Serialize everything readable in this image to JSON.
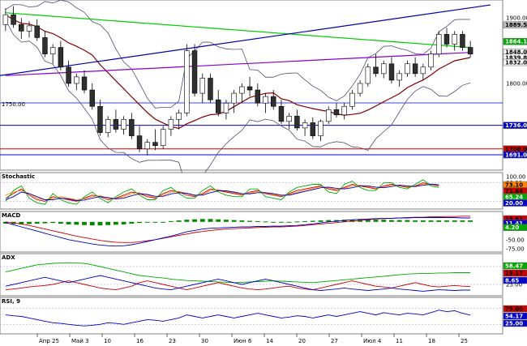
{
  "chart_data": {
    "type": "candlestick",
    "x_ticks": [
      "Апр 25",
      "Май 3",
      "10",
      "16",
      "23",
      "30",
      "Июн 6",
      "14",
      "20",
      "27",
      "Июл 4",
      "11",
      "18",
      "25"
    ],
    "price": {
      "ylim": [
        1670,
        1925
      ],
      "y_ticks": [
        1900.0,
        1800.0
      ],
      "left_level_label": "1750.00",
      "candles": [
        [
          1890,
          1915,
          1880,
          1905
        ],
        [
          1905,
          1918,
          1885,
          1890
        ],
        [
          1890,
          1900,
          1868,
          1880
        ],
        [
          1880,
          1895,
          1870,
          1888
        ],
        [
          1888,
          1898,
          1865,
          1870
        ],
        [
          1870,
          1880,
          1840,
          1845
        ],
        [
          1845,
          1860,
          1830,
          1855
        ],
        [
          1855,
          1865,
          1820,
          1825
        ],
        [
          1825,
          1835,
          1795,
          1800
        ],
        [
          1800,
          1815,
          1790,
          1810
        ],
        [
          1810,
          1820,
          1785,
          1790
        ],
        [
          1790,
          1800,
          1760,
          1765
        ],
        [
          1765,
          1775,
          1720,
          1725
        ],
        [
          1725,
          1750,
          1718,
          1745
        ],
        [
          1745,
          1760,
          1725,
          1730
        ],
        [
          1730,
          1750,
          1722,
          1745
        ],
        [
          1745,
          1755,
          1715,
          1720
        ],
        [
          1720,
          1735,
          1695,
          1700
        ],
        [
          1700,
          1715,
          1690,
          1710
        ],
        [
          1710,
          1730,
          1698,
          1705
        ],
        [
          1705,
          1735,
          1700,
          1730
        ],
        [
          1730,
          1750,
          1720,
          1745
        ],
        [
          1745,
          1760,
          1730,
          1755
        ],
        [
          1755,
          1860,
          1750,
          1850
        ],
        [
          1850,
          1860,
          1780,
          1785
        ],
        [
          1785,
          1815,
          1770,
          1808
        ],
        [
          1808,
          1815,
          1770,
          1775
        ],
        [
          1775,
          1790,
          1750,
          1755
        ],
        [
          1755,
          1775,
          1745,
          1770
        ],
        [
          1770,
          1790,
          1755,
          1785
        ],
        [
          1785,
          1800,
          1770,
          1795
        ],
        [
          1795,
          1810,
          1780,
          1790
        ],
        [
          1790,
          1800,
          1765,
          1770
        ],
        [
          1770,
          1785,
          1755,
          1780
        ],
        [
          1780,
          1790,
          1760,
          1765
        ],
        [
          1765,
          1775,
          1738,
          1742
        ],
        [
          1742,
          1755,
          1730,
          1750
        ],
        [
          1750,
          1760,
          1728,
          1732
        ],
        [
          1732,
          1745,
          1720,
          1740
        ],
        [
          1740,
          1748,
          1715,
          1720
        ],
        [
          1720,
          1745,
          1712,
          1742
        ],
        [
          1742,
          1765,
          1738,
          1760
        ],
        [
          1760,
          1770,
          1748,
          1752
        ],
        [
          1752,
          1770,
          1745,
          1765
        ],
        [
          1765,
          1790,
          1760,
          1785
        ],
        [
          1785,
          1805,
          1780,
          1800
        ],
        [
          1800,
          1830,
          1795,
          1825
        ],
        [
          1825,
          1845,
          1810,
          1815
        ],
        [
          1815,
          1835,
          1808,
          1830
        ],
        [
          1830,
          1840,
          1800,
          1805
        ],
        [
          1805,
          1820,
          1795,
          1815
        ],
        [
          1815,
          1835,
          1810,
          1830
        ],
        [
          1830,
          1840,
          1810,
          1815
        ],
        [
          1815,
          1830,
          1805,
          1825
        ],
        [
          1825,
          1850,
          1820,
          1845
        ],
        [
          1845,
          1880,
          1840,
          1875
        ],
        [
          1875,
          1885,
          1855,
          1860
        ],
        [
          1860,
          1880,
          1850,
          1875
        ],
        [
          1875,
          1880,
          1850,
          1855
        ],
        [
          1855,
          1865,
          1840,
          1845
        ]
      ],
      "levels": [
        {
          "label": "1736.00",
          "value": 1736,
          "color": "#0000cc"
        },
        {
          "label": "1700.00",
          "value": 1700,
          "color": "#cc0000"
        },
        {
          "label": "1691.00",
          "value": 1691,
          "color": "#0000cc"
        }
      ],
      "right_tags": [
        {
          "label": "1889.58",
          "value": 1889.58,
          "color": "#c0c0c0"
        },
        {
          "label": "1864.10",
          "value": 1864.1,
          "color": "#00aa00"
        },
        {
          "label": "1848.00",
          "value": 1848.0,
          "color": "#ffffff"
        },
        {
          "label": "1839.86",
          "value": 1839.86,
          "color": "#ffffff"
        },
        {
          "label": "1832.09",
          "value": 1832.09,
          "color": "#ffffff"
        }
      ]
    },
    "stochastic": {
      "title": "Stochastic",
      "ylim": [
        0,
        100
      ],
      "y_ticks": [
        100.0,
        80.0,
        20.0
      ],
      "right_tags": [
        {
          "label": "73.10",
          "color": "#ff8800"
        },
        {
          "label": "71.64",
          "color": "#cc0000"
        },
        {
          "label": "65.24",
          "color": "#00aa00"
        },
        {
          "label": "20.00",
          "color": "#0000cc"
        }
      ],
      "series": [
        {
          "color": "#cc0000",
          "values": [
            30,
            45,
            60,
            40,
            25,
            20,
            35,
            30,
            25,
            20,
            30,
            40,
            35,
            25,
            30,
            40,
            50,
            45,
            35,
            30,
            45,
            55,
            50,
            40,
            35,
            45,
            60,
            55,
            50,
            45,
            40,
            50,
            55,
            45,
            40,
            35,
            45,
            55,
            60,
            65,
            70,
            60,
            55,
            65,
            75,
            70,
            65,
            60,
            70,
            75,
            70,
            65,
            70,
            80,
            75,
            70
          ]
        },
        {
          "color": "#ff8800",
          "values": [
            40,
            50,
            55,
            45,
            30,
            25,
            30,
            35,
            30,
            25,
            28,
            35,
            38,
            30,
            28,
            35,
            45,
            48,
            40,
            32,
            40,
            50,
            52,
            45,
            38,
            42,
            55,
            58,
            52,
            48,
            42,
            46,
            52,
            48,
            42,
            38,
            42,
            50,
            56,
            62,
            68,
            64,
            58,
            62,
            70,
            72,
            68,
            62,
            66,
            72,
            72,
            68,
            68,
            76,
            76,
            73
          ]
        },
        {
          "color": "#00aa00",
          "values": [
            20,
            55,
            70,
            30,
            15,
            10,
            45,
            25,
            15,
            10,
            35,
            50,
            30,
            15,
            35,
            50,
            60,
            40,
            25,
            25,
            55,
            65,
            45,
            30,
            30,
            55,
            70,
            50,
            40,
            35,
            35,
            60,
            60,
            35,
            30,
            25,
            50,
            65,
            70,
            75,
            75,
            50,
            45,
            75,
            85,
            65,
            55,
            55,
            80,
            80,
            65,
            60,
            75,
            90,
            70,
            65
          ]
        },
        {
          "color": "#0000cc",
          "values": [
            25,
            35,
            50,
            45,
            35,
            25,
            25,
            30,
            28,
            22,
            24,
            30,
            35,
            32,
            28,
            30,
            38,
            44,
            42,
            36,
            36,
            44,
            48,
            46,
            40,
            40,
            48,
            54,
            54,
            50,
            45,
            44,
            48,
            48,
            45,
            40,
            40,
            46,
            52,
            58,
            64,
            66,
            62,
            60,
            64,
            70,
            70,
            66,
            64,
            68,
            72,
            70,
            68,
            72,
            75,
            74
          ]
        }
      ]
    },
    "macd": {
      "title": "MACD",
      "ylim": [
        -80,
        20
      ],
      "y_ticks": [
        "-50.00",
        "-75.00"
      ],
      "right_tags": [
        {
          "label": "15.61",
          "color": "#cc0000"
        },
        {
          "label": "11.41",
          "color": "#0000cc"
        },
        {
          "label": "4.20",
          "color": "#00aa00"
        }
      ],
      "histogram": [
        -5,
        -6,
        -7,
        -6,
        -5,
        -4,
        -3,
        -5,
        -7,
        -8,
        -9,
        -10,
        -10,
        -9,
        -8,
        -7,
        -5,
        -3,
        -2,
        -1,
        0,
        2,
        4,
        6,
        7,
        8,
        8,
        7,
        6,
        5,
        4,
        3,
        2,
        1,
        0,
        -1,
        0,
        1,
        2,
        3,
        4,
        5,
        5,
        6,
        6,
        7,
        7,
        6,
        6,
        5,
        5,
        5,
        4,
        4,
        4,
        4,
        4,
        4,
        4,
        4
      ],
      "lines": [
        {
          "color": "#cc0000",
          "values": [
            0,
            -3,
            -6,
            -10,
            -15,
            -20,
            -25,
            -30,
            -35,
            -40,
            -44,
            -48,
            -52,
            -55,
            -57,
            -58,
            -58,
            -56,
            -53,
            -50,
            -46,
            -42,
            -38,
            -34,
            -30,
            -27,
            -24,
            -22,
            -20,
            -19,
            -18,
            -17,
            -16,
            -15,
            -14,
            -14,
            -13,
            -12,
            -10,
            -8,
            -6,
            -4,
            -2,
            0,
            2,
            4,
            6,
            8,
            9,
            10,
            11,
            12,
            13,
            13,
            14,
            14,
            15,
            15,
            16,
            16
          ]
        },
        {
          "color": "#0000cc",
          "values": [
            -2,
            -8,
            -14,
            -20,
            -26,
            -32,
            -38,
            -44,
            -50,
            -54,
            -58,
            -62,
            -65,
            -67,
            -68,
            -67,
            -64,
            -60,
            -55,
            -50,
            -45,
            -40,
            -34,
            -28,
            -24,
            -20,
            -18,
            -17,
            -16,
            -15,
            -14,
            -14,
            -13,
            -13,
            -12,
            -12,
            -11,
            -10,
            -8,
            -6,
            -3,
            0,
            2,
            4,
            6,
            7,
            8,
            9,
            10,
            10,
            11,
            11,
            12,
            12,
            12,
            12,
            12,
            12,
            11,
            11
          ]
        }
      ]
    },
    "adx": {
      "title": "ADX",
      "ylim": [
        0,
        100
      ],
      "y_ticks": [
        75.0,
        25.0
      ],
      "right_tags": [
        {
          "label": "58.47",
          "color": "#00aa00"
        },
        {
          "label": "19.17",
          "color": "#cc0000"
        },
        {
          "label": "8.65",
          "color": "#0000cc"
        }
      ],
      "series": [
        {
          "color": "#00aa00",
          "values": [
            60,
            65,
            70,
            75,
            80,
            82,
            84,
            85,
            86,
            85,
            84,
            80,
            75,
            70,
            65,
            60,
            55,
            50,
            48,
            45,
            43,
            40,
            38,
            36,
            35,
            34,
            33,
            32,
            31,
            30,
            31,
            32,
            33,
            34,
            35,
            34,
            33,
            32,
            31,
            30,
            32,
            34,
            36,
            38,
            40,
            42,
            44,
            46,
            48,
            50,
            52,
            54,
            55,
            56,
            56,
            57,
            57,
            58,
            58,
            58
          ]
        },
        {
          "color": "#cc0000",
          "values": [
            10,
            12,
            15,
            18,
            20,
            22,
            25,
            30,
            35,
            30,
            25,
            20,
            15,
            12,
            10,
            15,
            20,
            30,
            35,
            30,
            25,
            20,
            15,
            10,
            15,
            20,
            25,
            30,
            25,
            20,
            15,
            12,
            10,
            12,
            15,
            18,
            20,
            15,
            12,
            10,
            15,
            20,
            25,
            30,
            35,
            30,
            25,
            20,
            18,
            15,
            20,
            25,
            30,
            25,
            20,
            18,
            20,
            22,
            20,
            19
          ]
        },
        {
          "color": "#0000cc",
          "values": [
            20,
            25,
            30,
            35,
            40,
            45,
            40,
            35,
            30,
            35,
            40,
            45,
            50,
            45,
            40,
            35,
            30,
            25,
            20,
            15,
            12,
            10,
            15,
            20,
            25,
            30,
            35,
            40,
            35,
            30,
            25,
            30,
            35,
            40,
            35,
            30,
            25,
            20,
            15,
            10,
            8,
            10,
            12,
            15,
            12,
            10,
            8,
            10,
            12,
            15,
            12,
            10,
            8,
            6,
            8,
            10,
            9,
            8,
            9,
            9
          ]
        }
      ]
    },
    "rsi": {
      "title": "RSI, 9",
      "ylim": [
        0,
        100
      ],
      "y_ticks": [
        75.0,
        25.0
      ],
      "right_tags": [
        {
          "label": "75.00",
          "color": "#cc0000"
        },
        {
          "label": "54.17",
          "color": "#0000cc"
        },
        {
          "label": "25.00",
          "color": "#0000cc"
        }
      ],
      "series": [
        {
          "color": "#0000cc",
          "values": [
            55,
            52,
            50,
            45,
            40,
            35,
            30,
            28,
            25,
            22,
            20,
            22,
            25,
            30,
            28,
            25,
            30,
            35,
            40,
            38,
            35,
            40,
            45,
            55,
            50,
            45,
            50,
            55,
            50,
            45,
            50,
            55,
            60,
            55,
            50,
            45,
            48,
            52,
            50,
            45,
            50,
            55,
            50,
            55,
            60,
            65,
            60,
            55,
            62,
            58,
            55,
            60,
            58,
            55,
            62,
            70,
            65,
            68,
            60,
            54
          ]
        }
      ]
    }
  }
}
